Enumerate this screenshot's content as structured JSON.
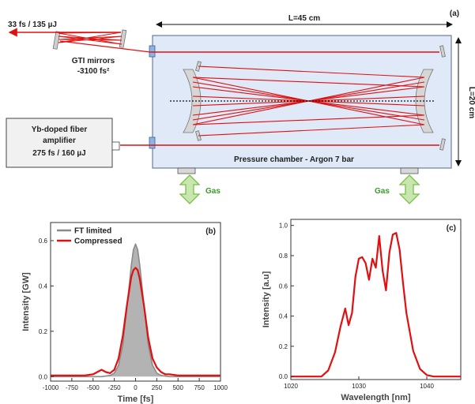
{
  "panel_a": {
    "panel_label": "(a)",
    "output_label": "33 fs / 135 µJ",
    "gti_label_1": "GTI mirrors",
    "gti_label_2": "-3100 fs²",
    "amp_label_1": "Yb-doped fiber",
    "amp_label_2": "amplifier",
    "amp_label_3": "275 fs / 160 µJ",
    "length_label": "L=45 cm",
    "height_label": "L=20 cm",
    "chamber_label": "Pressure chamber - Argon 7 bar",
    "gas_label_left": "Gas",
    "gas_label_right": "Gas",
    "colors": {
      "beam": "#e01010",
      "chamber": "#dfe9f7",
      "gas_arrow": "#7ac143",
      "window": "#8fb3e3"
    }
  },
  "chart_data": [
    {
      "type": "area",
      "panel_label": "(b)",
      "xlabel": "Time  [fs]",
      "ylabel": "Intensity  [GW]",
      "xlim": [
        -1000,
        1000
      ],
      "ylim": [
        -0.02,
        0.68
      ],
      "xticks": [
        -1000,
        -750,
        -500,
        -250,
        0,
        250,
        500,
        750,
        1000
      ],
      "yticks": [
        0.0,
        0.2,
        0.4,
        0.6
      ],
      "legend_position": "top-left",
      "series": [
        {
          "name": "FT limited",
          "color": "#8a8a8a",
          "fill": "#b3b3b3",
          "x": [
            -1000,
            -400,
            -300,
            -250,
            -200,
            -150,
            -100,
            -75,
            -50,
            -25,
            0,
            25,
            50,
            75,
            100,
            150,
            200,
            250,
            300,
            400,
            1000
          ],
          "y": [
            0.0,
            0.0,
            0.005,
            0.015,
            0.05,
            0.14,
            0.31,
            0.4,
            0.49,
            0.56,
            0.585,
            0.56,
            0.49,
            0.4,
            0.31,
            0.14,
            0.05,
            0.015,
            0.005,
            0.0,
            0.0
          ]
        },
        {
          "name": "Compressed",
          "color": "#e01010",
          "x": [
            -1000,
            -600,
            -500,
            -450,
            -400,
            -350,
            -300,
            -250,
            -200,
            -150,
            -100,
            -50,
            -25,
            0,
            25,
            50,
            100,
            150,
            200,
            250,
            300,
            350,
            400,
            500,
            1000
          ],
          "y": [
            0.005,
            0.005,
            0.01,
            0.02,
            0.03,
            0.02,
            0.015,
            0.03,
            0.08,
            0.18,
            0.32,
            0.44,
            0.47,
            0.48,
            0.47,
            0.43,
            0.31,
            0.17,
            0.08,
            0.04,
            0.02,
            0.01,
            0.01,
            0.005,
            0.005
          ]
        }
      ]
    },
    {
      "type": "line",
      "panel_label": "(c)",
      "xlabel": "Wavelength  [nm]",
      "ylabel": "Intensity  [a.u]",
      "xlim": [
        1020,
        1045
      ],
      "ylim": [
        -0.02,
        1.04
      ],
      "xticks": [
        1020,
        1030,
        1040
      ],
      "yticks": [
        0.0,
        0.2,
        0.4,
        0.6,
        0.8,
        1.0
      ],
      "series": [
        {
          "name": "",
          "color": "#e01010",
          "x": [
            1020,
            1024.5,
            1025.5,
            1026.5,
            1027.3,
            1028,
            1028.5,
            1029,
            1029.5,
            1030,
            1030.5,
            1031,
            1031.5,
            1032,
            1032.5,
            1033,
            1033.5,
            1034,
            1034.5,
            1035,
            1035.5,
            1036,
            1036.5,
            1037,
            1038,
            1039,
            1040,
            1041,
            1045
          ],
          "y": [
            0.0,
            0.0,
            0.04,
            0.16,
            0.33,
            0.45,
            0.34,
            0.42,
            0.66,
            0.78,
            0.79,
            0.75,
            0.64,
            0.78,
            0.72,
            0.93,
            0.7,
            0.57,
            0.82,
            0.94,
            0.95,
            0.84,
            0.62,
            0.42,
            0.17,
            0.05,
            0.01,
            0.0,
            0.0
          ]
        }
      ]
    }
  ]
}
